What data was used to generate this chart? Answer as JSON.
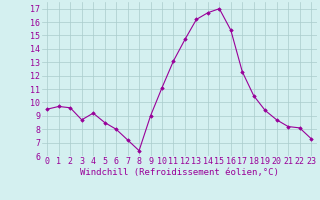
{
  "x": [
    0,
    1,
    2,
    3,
    4,
    5,
    6,
    7,
    8,
    9,
    10,
    11,
    12,
    13,
    14,
    15,
    16,
    17,
    18,
    19,
    20,
    21,
    22,
    23
  ],
  "y": [
    9.5,
    9.7,
    9.6,
    8.7,
    9.2,
    8.5,
    8.0,
    7.2,
    6.4,
    9.0,
    11.1,
    13.1,
    14.7,
    16.2,
    16.7,
    17.0,
    15.4,
    12.3,
    10.5,
    9.4,
    8.7,
    8.2,
    8.1,
    7.3
  ],
  "xlabel": "Windchill (Refroidissement éolien,°C)",
  "ylim": [
    6,
    17.5
  ],
  "yticks": [
    6,
    7,
    8,
    9,
    10,
    11,
    12,
    13,
    14,
    15,
    16,
    17
  ],
  "xticks": [
    0,
    1,
    2,
    3,
    4,
    5,
    6,
    7,
    8,
    9,
    10,
    11,
    12,
    13,
    14,
    15,
    16,
    17,
    18,
    19,
    20,
    21,
    22,
    23
  ],
  "line_color": "#990099",
  "marker": "D",
  "marker_size": 1.8,
  "bg_color": "#d4f0f0",
  "grid_color": "#aacccc",
  "tick_label_color": "#990099",
  "xlabel_color": "#990099",
  "xlabel_fontsize": 6.5,
  "tick_fontsize": 6.0,
  "linewidth": 0.8
}
